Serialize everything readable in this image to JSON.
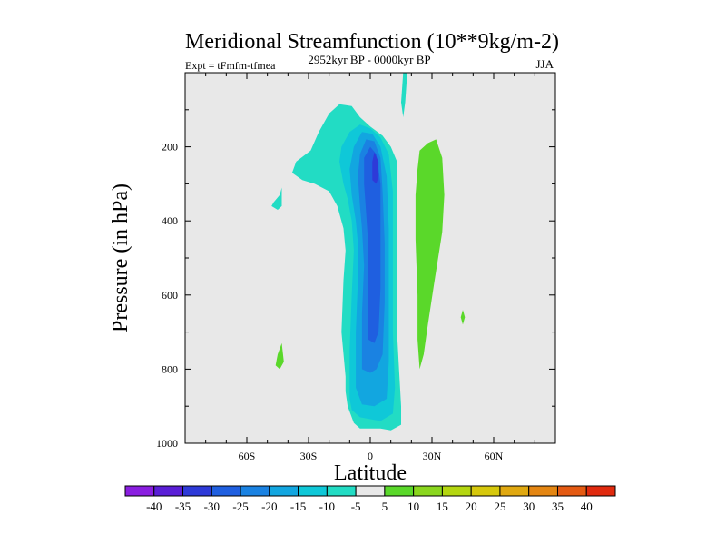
{
  "chart_data": {
    "type": "contour",
    "title": "Meridional Streamfunction (10**9kg/m-2)",
    "subtitle_left": "Expt = tFmfm-tfmea",
    "subtitle_center": "2952kyr BP - 0000kyr BP",
    "subtitle_right": "JJA",
    "xlabel": "Latitude",
    "ylabel": "Pressure (in hPa)",
    "xlim": [
      -90,
      90
    ],
    "ylim": [
      1000,
      0
    ],
    "xticks": [
      {
        "value": -60,
        "label": "60S"
      },
      {
        "value": -30,
        "label": "30S"
      },
      {
        "value": 0,
        "label": "0"
      },
      {
        "value": 30,
        "label": "30N"
      },
      {
        "value": 60,
        "label": "60N"
      }
    ],
    "yticks": [
      {
        "value": 200,
        "label": "200"
      },
      {
        "value": 400,
        "label": "400"
      },
      {
        "value": 600,
        "label": "600"
      },
      {
        "value": 800,
        "label": "800"
      },
      {
        "value": 1000,
        "label": "1000"
      }
    ],
    "colorbar": {
      "labels": [
        "-40",
        "-35",
        "-30",
        "-25",
        "-20",
        "-15",
        "-10",
        "-5",
        "5",
        "10",
        "15",
        "20",
        "25",
        "30",
        "35",
        "40"
      ],
      "colors": [
        "#8a1ee0",
        "#5a1ed6",
        "#2e3ad8",
        "#1f5fe0",
        "#1a82e2",
        "#12a6e0",
        "#0fc8d8",
        "#22dcc4",
        "#e8e8e8",
        "#5ad82a",
        "#8ad61e",
        "#b4d610",
        "#d6c80c",
        "#e0a810",
        "#e48612",
        "#e45a12",
        "#e02a0e"
      ]
    },
    "background_color": "#e8e8e8",
    "contour_regions": [
      {
        "level": "-10 to -5",
        "color": "#22dcc4",
        "points": [
          [
            -12,
            820
          ],
          [
            -14,
            700
          ],
          [
            -13,
            560
          ],
          [
            -12,
            480
          ],
          [
            -13,
            420
          ],
          [
            -16,
            360
          ],
          [
            -20,
            320
          ],
          [
            -27,
            300
          ],
          [
            -33,
            290
          ],
          [
            -38,
            270
          ],
          [
            -36,
            240
          ],
          [
            -29,
            210
          ],
          [
            -25,
            160
          ],
          [
            -20,
            110
          ],
          [
            -15,
            85
          ],
          [
            -9,
            90
          ],
          [
            -5,
            120
          ],
          [
            0,
            145
          ],
          [
            6,
            170
          ],
          [
            10,
            200
          ],
          [
            13,
            240
          ],
          [
            13,
            400
          ],
          [
            13,
            700
          ],
          [
            14,
            800
          ],
          [
            15,
            900
          ],
          [
            15,
            950
          ],
          [
            10,
            965
          ],
          [
            5,
            960
          ],
          [
            0,
            960
          ],
          [
            -5,
            960
          ],
          [
            -8,
            945
          ],
          [
            -11,
            900
          ],
          [
            -12,
            860
          ]
        ]
      },
      {
        "level": "-10 to -5",
        "color": "#22dcc4",
        "points": [
          [
            -43,
            310
          ],
          [
            -44,
            330
          ],
          [
            -47,
            350
          ],
          [
            -48,
            360
          ],
          [
            -45,
            370
          ],
          [
            -43,
            360
          ]
        ]
      },
      {
        "level": "-10 to -5",
        "color": "#22dcc4",
        "points": [
          [
            16,
            0
          ],
          [
            18,
            0
          ],
          [
            17,
            80
          ],
          [
            16,
            120
          ],
          [
            15,
            80
          ]
        ]
      },
      {
        "level": "-15 to -10",
        "color": "#0fc8d8",
        "points": [
          [
            -10,
            880
          ],
          [
            -10,
            750
          ],
          [
            -9,
            600
          ],
          [
            -8,
            480
          ],
          [
            -9,
            400
          ],
          [
            -11,
            340
          ],
          [
            -13,
            300
          ],
          [
            -15,
            240
          ],
          [
            -14,
            200
          ],
          [
            -10,
            160
          ],
          [
            -5,
            140
          ],
          [
            0,
            150
          ],
          [
            5,
            175
          ],
          [
            9,
            220
          ],
          [
            11,
            320
          ],
          [
            11,
            500
          ],
          [
            11,
            700
          ],
          [
            12,
            850
          ],
          [
            11,
            920
          ],
          [
            5,
            940
          ],
          [
            -5,
            930
          ],
          [
            -9,
            910
          ]
        ]
      },
      {
        "level": "-20 to -15",
        "color": "#12a6e0",
        "points": [
          [
            -7,
            850
          ],
          [
            -7,
            700
          ],
          [
            -6,
            560
          ],
          [
            -6,
            460
          ],
          [
            -7,
            400
          ],
          [
            -9,
            330
          ],
          [
            -10,
            260
          ],
          [
            -8,
            200
          ],
          [
            -4,
            160
          ],
          [
            1,
            165
          ],
          [
            5,
            200
          ],
          [
            8,
            280
          ],
          [
            9,
            420
          ],
          [
            9,
            600
          ],
          [
            9,
            780
          ],
          [
            8,
            880
          ],
          [
            2,
            900
          ],
          [
            -4,
            895
          ]
        ]
      },
      {
        "level": "-25 to -20",
        "color": "#1a82e2",
        "points": [
          [
            -4,
            800
          ],
          [
            -4,
            650
          ],
          [
            -3,
            520
          ],
          [
            -4,
            420
          ],
          [
            -5,
            360
          ],
          [
            -6,
            280
          ],
          [
            -5,
            220
          ],
          [
            -2,
            180
          ],
          [
            2,
            185
          ],
          [
            5,
            230
          ],
          [
            6,
            320
          ],
          [
            7,
            460
          ],
          [
            7,
            620
          ],
          [
            6,
            760
          ],
          [
            3,
            800
          ],
          [
            0,
            810
          ]
        ]
      },
      {
        "level": "-30 to -25",
        "color": "#1f5fe0",
        "points": [
          [
            -1,
            720
          ],
          [
            -1,
            560
          ],
          [
            -1,
            460
          ],
          [
            -2,
            380
          ],
          [
            -3,
            300
          ],
          [
            -3,
            230
          ],
          [
            0,
            200
          ],
          [
            3,
            220
          ],
          [
            5,
            300
          ],
          [
            5,
            440
          ],
          [
            5,
            580
          ],
          [
            4,
            700
          ],
          [
            2,
            730
          ]
        ]
      },
      {
        "level": "-35 to -30",
        "color": "#2e3ad8",
        "points": [
          [
            1,
            290
          ],
          [
            1,
            240
          ],
          [
            2,
            215
          ],
          [
            4,
            240
          ],
          [
            4,
            280
          ],
          [
            3,
            300
          ]
        ]
      },
      {
        "level": "5 to 10",
        "color": "#5ad82a",
        "points": [
          [
            23,
            600
          ],
          [
            22,
            450
          ],
          [
            22,
            330
          ],
          [
            23,
            260
          ],
          [
            24,
            210
          ],
          [
            28,
            190
          ],
          [
            32,
            180
          ],
          [
            35,
            230
          ],
          [
            36,
            330
          ],
          [
            35,
            430
          ],
          [
            31,
            570
          ],
          [
            28,
            680
          ],
          [
            26,
            760
          ],
          [
            24,
            800
          ],
          [
            23,
            720
          ]
        ]
      },
      {
        "level": "5 to 10",
        "color": "#5ad82a",
        "points": [
          [
            -43,
            730
          ],
          [
            -45,
            760
          ],
          [
            -46,
            790
          ],
          [
            -44,
            800
          ],
          [
            -42,
            780
          ]
        ]
      },
      {
        "level": "5 to 10",
        "color": "#5ad82a",
        "points": [
          [
            45,
            640
          ],
          [
            44,
            660
          ],
          [
            45,
            680
          ],
          [
            46,
            660
          ]
        ]
      }
    ]
  }
}
